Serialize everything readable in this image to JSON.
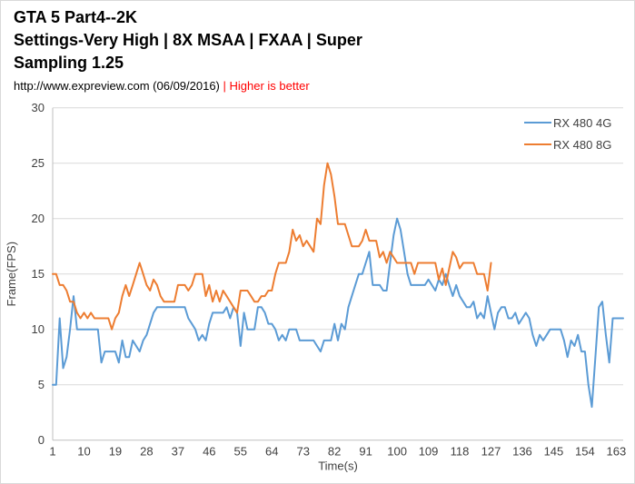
{
  "header": {
    "title_lines": [
      "GTA 5 Part4--2K",
      "Settings-Very High | 8X MSAA | FXAA | Super",
      "Sampling 1.25"
    ],
    "subtitle_left": "http://www.expreview.com (06/09/2016) ",
    "subtitle_highlight": "| Higher is better"
  },
  "colors": {
    "series_blue": "#5B9BD5",
    "series_orange": "#ED7D31",
    "highlight_red": "#FF0000",
    "gridline": "#D9D9D9",
    "axis_line": "#BFBFBF",
    "axis_text": "#404040"
  },
  "chart_data": {
    "type": "line",
    "title": "GTA 5 Part4--2K Settings-Very High | 8X MSAA | FXAA | Super Sampling 1.25",
    "subtitle": "http://www.expreview.com (06/09/2016) | Higher is better",
    "xlabel": "Time(s)",
    "ylabel": "Frame(FPS)",
    "xlim": [
      1,
      165
    ],
    "ylim": [
      0,
      30
    ],
    "x_ticks": [
      1,
      10,
      19,
      28,
      37,
      46,
      55,
      64,
      73,
      82,
      91,
      100,
      109,
      118,
      127,
      136,
      145,
      154,
      163
    ],
    "y_ticks": [
      0,
      5,
      10,
      15,
      20,
      25,
      30
    ],
    "grid": true,
    "legend_position": "top-right",
    "x_start": 1,
    "x_step": 1,
    "series": [
      {
        "name": "RX 480 4G",
        "color": "#5B9BD5",
        "values": [
          5,
          5,
          11,
          6.5,
          7.5,
          10,
          13,
          10,
          10,
          10,
          10,
          10,
          10,
          10,
          7,
          8,
          8,
          8,
          8,
          7,
          9,
          7.5,
          7.5,
          9,
          8.5,
          8,
          9,
          9.5,
          10.5,
          11.5,
          12,
          12,
          12,
          12,
          12,
          12,
          12,
          12,
          12,
          11,
          10.5,
          10,
          9,
          9.5,
          9,
          10.5,
          11.5,
          11.5,
          11.5,
          11.5,
          12,
          11,
          12,
          11.5,
          8.5,
          11.5,
          10,
          10,
          10,
          12,
          12,
          11.5,
          10.5,
          10.5,
          10,
          9,
          9.5,
          9,
          10,
          10,
          10,
          9,
          9,
          9,
          9,
          9,
          8.5,
          8,
          9,
          9,
          9,
          10.5,
          9,
          10.5,
          10,
          12,
          13,
          14,
          15,
          15,
          16,
          17,
          14,
          14,
          14,
          13.5,
          13.5,
          16,
          18.5,
          20,
          19,
          17,
          15,
          14,
          14,
          14,
          14,
          14,
          14.5,
          14,
          13.5,
          14.5,
          14,
          15,
          14,
          13,
          14,
          13,
          12.5,
          12,
          12,
          12.5,
          11,
          11.5,
          11,
          13,
          11.5,
          10,
          11.5,
          12,
          12,
          11,
          11,
          11.5,
          10.5,
          11,
          11.5,
          11,
          9.5,
          8.5,
          9.5,
          9,
          9.5,
          10,
          10,
          10,
          10,
          9,
          7.5,
          9,
          8.5,
          9.5,
          8,
          8,
          5,
          3,
          7.5,
          12,
          12.5,
          9.5,
          7,
          11,
          11,
          11,
          11
        ]
      },
      {
        "name": "RX 480 8G",
        "color": "#ED7D31",
        "values": [
          15,
          15,
          14,
          14,
          13.5,
          12.5,
          12.5,
          11.5,
          11,
          11.5,
          11,
          11.5,
          11,
          11,
          11,
          11,
          11,
          10,
          11,
          11.5,
          13,
          14,
          13,
          14,
          15,
          16,
          15,
          14,
          13.5,
          14.5,
          14,
          13,
          12.5,
          12.5,
          12.5,
          12.5,
          14,
          14,
          14,
          13.5,
          14,
          15,
          15,
          15,
          13,
          14,
          12.5,
          13.5,
          12.5,
          13.5,
          13,
          12.5,
          12,
          11.5,
          13.5,
          13.5,
          13.5,
          13,
          12.5,
          12.5,
          13,
          13,
          13.5,
          13.5,
          15,
          16,
          16,
          16,
          17,
          19,
          18,
          18.5,
          17.5,
          18,
          17.5,
          17,
          20,
          19.5,
          23,
          25,
          24,
          22,
          19.5,
          19.5,
          19.5,
          18.5,
          17.5,
          17.5,
          17.5,
          18,
          19,
          18,
          18,
          18,
          16.5,
          17,
          16,
          17,
          16.5,
          16,
          16,
          16,
          16,
          16,
          15,
          16,
          16,
          16,
          16,
          16,
          16,
          14.5,
          15.5,
          14,
          15.5,
          17,
          16.5,
          15.5,
          16,
          16,
          16,
          16,
          15,
          15,
          15,
          13.5,
          16
        ]
      }
    ]
  }
}
